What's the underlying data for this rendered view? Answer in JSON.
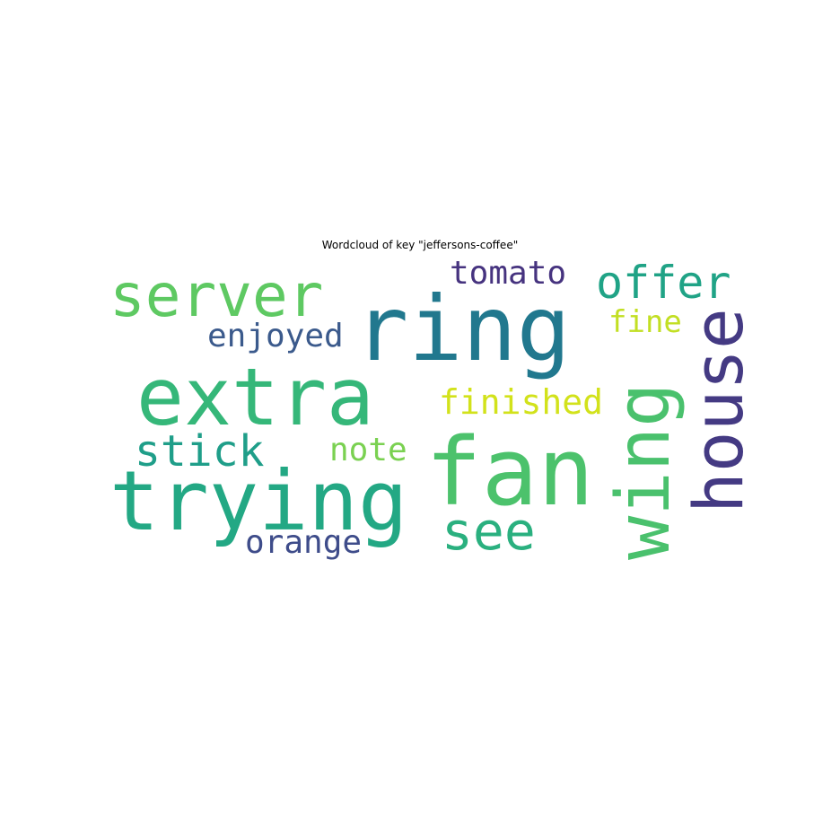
{
  "chart_data": {
    "type": "wordcloud",
    "title": "Wordcloud of key \"jeffersons-coffee\"",
    "words": [
      {
        "text": "ring",
        "weight": 1.0,
        "color": "#21788e",
        "orientation": "horizontal"
      },
      {
        "text": "fan",
        "weight": 0.97,
        "color": "#4cc26c",
        "orientation": "horizontal"
      },
      {
        "text": "trying",
        "weight": 0.93,
        "color": "#23a884",
        "orientation": "horizontal"
      },
      {
        "text": "extra",
        "weight": 0.9,
        "color": "#35b779",
        "orientation": "horizontal"
      },
      {
        "text": "wing",
        "weight": 0.85,
        "color": "#4ac16d",
        "orientation": "vertical"
      },
      {
        "text": "house",
        "weight": 0.75,
        "color": "#443a83",
        "orientation": "vertical"
      },
      {
        "text": "server",
        "weight": 0.7,
        "color": "#5ec962",
        "orientation": "horizontal"
      },
      {
        "text": "see",
        "weight": 0.65,
        "color": "#2ab07f",
        "orientation": "horizontal"
      },
      {
        "text": "stick",
        "weight": 0.55,
        "color": "#1f9e89",
        "orientation": "horizontal"
      },
      {
        "text": "offer",
        "weight": 0.55,
        "color": "#20a386",
        "orientation": "horizontal"
      },
      {
        "text": "finished",
        "weight": 0.45,
        "color": "#d2e21b",
        "orientation": "horizontal"
      },
      {
        "text": "enjoyed",
        "weight": 0.42,
        "color": "#3b5a8c",
        "orientation": "horizontal"
      },
      {
        "text": "tomato",
        "weight": 0.42,
        "color": "#46337f",
        "orientation": "horizontal"
      },
      {
        "text": "note",
        "weight": 0.4,
        "color": "#7ad151",
        "orientation": "horizontal"
      },
      {
        "text": "orange",
        "weight": 0.4,
        "color": "#3e4c8a",
        "orientation": "horizontal"
      },
      {
        "text": "fine",
        "weight": 0.38,
        "color": "#c2df23",
        "orientation": "horizontal"
      }
    ]
  }
}
